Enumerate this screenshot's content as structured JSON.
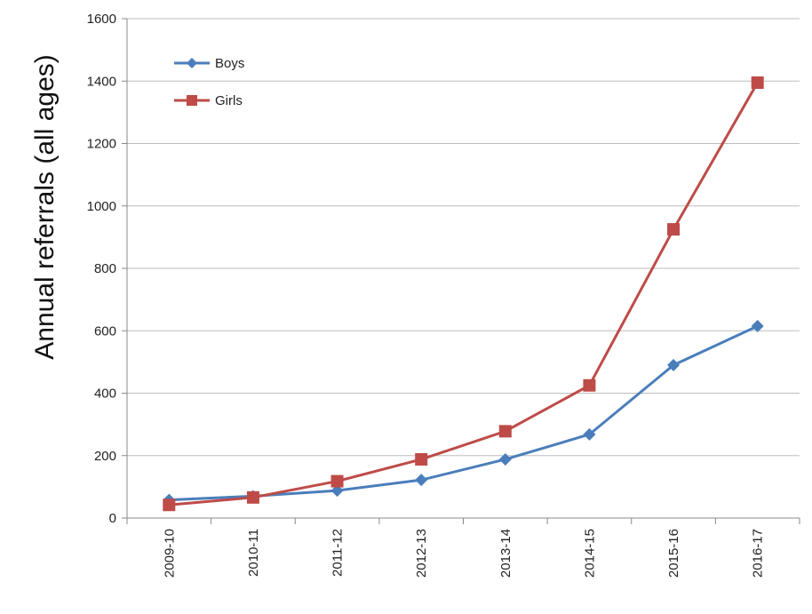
{
  "chart_data": {
    "type": "line",
    "title": "",
    "xlabel": "",
    "ylabel": "Annual referrals (all ages)",
    "categories": [
      "2009-10",
      "2010-11",
      "2011-12",
      "2012-13",
      "2013-14",
      "2014-15",
      "2015-16",
      "2016-17"
    ],
    "ylim": [
      0,
      1600
    ],
    "yticks": [
      0,
      200,
      400,
      600,
      800,
      1000,
      1200,
      1400,
      1600
    ],
    "grid": true,
    "legend_position": "top-left",
    "series": [
      {
        "name": "Boys",
        "color": "#4a7ebb",
        "marker": "diamond",
        "values": [
          58,
          70,
          88,
          122,
          188,
          268,
          490,
          615
        ]
      },
      {
        "name": "Girls",
        "color": "#be4b48",
        "marker": "square",
        "values": [
          42,
          66,
          118,
          188,
          278,
          425,
          925,
          1395
        ]
      }
    ]
  }
}
